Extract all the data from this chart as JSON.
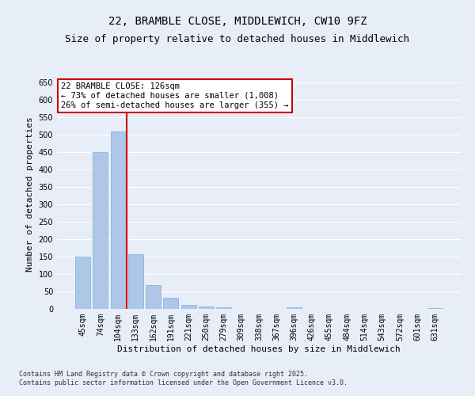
{
  "title": "22, BRAMBLE CLOSE, MIDDLEWICH, CW10 9FZ",
  "subtitle": "Size of property relative to detached houses in Middlewich",
  "xlabel": "Distribution of detached houses by size in Middlewich",
  "ylabel": "Number of detached properties",
  "categories": [
    "45sqm",
    "74sqm",
    "104sqm",
    "133sqm",
    "162sqm",
    "191sqm",
    "221sqm",
    "250sqm",
    "279sqm",
    "309sqm",
    "338sqm",
    "367sqm",
    "396sqm",
    "426sqm",
    "455sqm",
    "484sqm",
    "514sqm",
    "543sqm",
    "572sqm",
    "601sqm",
    "631sqm"
  ],
  "values": [
    150,
    450,
    510,
    158,
    68,
    32,
    11,
    7,
    4,
    0,
    0,
    0,
    5,
    0,
    0,
    0,
    0,
    0,
    0,
    0,
    3
  ],
  "bar_color": "#aec6e8",
  "bar_edge_color": "#7aafd4",
  "vline_x": 2.5,
  "vline_color": "#cc0000",
  "annotation_text": "22 BRAMBLE CLOSE: 126sqm\n← 73% of detached houses are smaller (1,008)\n26% of semi-detached houses are larger (355) →",
  "annotation_box_color": "#ffffff",
  "annotation_box_edge": "#cc0000",
  "ylim": [
    0,
    660
  ],
  "yticks": [
    0,
    50,
    100,
    150,
    200,
    250,
    300,
    350,
    400,
    450,
    500,
    550,
    600,
    650
  ],
  "background_color": "#e8eef8",
  "grid_color": "#ffffff",
  "footer": "Contains HM Land Registry data © Crown copyright and database right 2025.\nContains public sector information licensed under the Open Government Licence v3.0.",
  "title_fontsize": 10,
  "subtitle_fontsize": 9,
  "axis_label_fontsize": 8,
  "tick_fontsize": 7,
  "annotation_fontsize": 7.5,
  "footer_fontsize": 6
}
